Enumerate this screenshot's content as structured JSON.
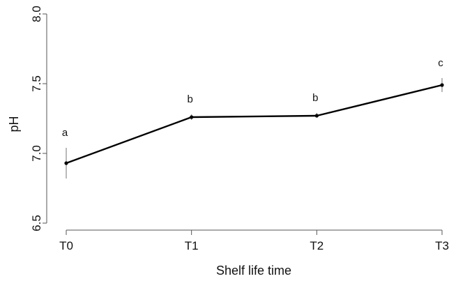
{
  "chart_data": {
    "type": "line",
    "title": "",
    "xlabel": "Shelf life time",
    "ylabel": "pH",
    "categories": [
      "T0",
      "T1",
      "T2",
      "T3"
    ],
    "series": [
      {
        "values": [
          6.93,
          7.26,
          7.27,
          7.49
        ],
        "error_low": [
          6.82,
          7.24,
          7.26,
          7.44
        ],
        "error_high": [
          7.04,
          7.28,
          7.29,
          7.54
        ],
        "significance_labels": [
          "a",
          "b",
          "b",
          "c"
        ]
      }
    ],
    "ylim": [
      6.5,
      8.0
    ],
    "yticks": [
      "6.5",
      "7.0",
      "7.5",
      "8.0"
    ],
    "grid": false,
    "legend": "none",
    "colors": {
      "line": "#000000",
      "error_bar": "#8a8a8a",
      "axis": "#555555"
    }
  }
}
